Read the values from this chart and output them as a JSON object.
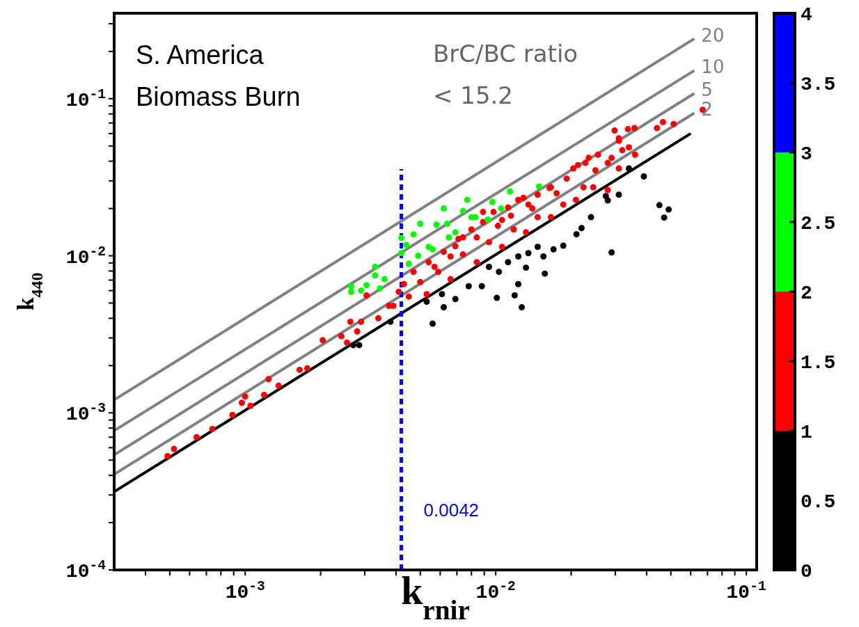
{
  "chart_data": {
    "type": "scatter",
    "xlabel": "k$_{rnir}$",
    "ylabel": "k$_{440}$",
    "log": "xy",
    "xlim": [
      0.0003,
      0.11
    ],
    "ylim": [
      0.0001,
      0.35
    ],
    "xticks": [
      {
        "value": 0.0004,
        "label": null
      },
      {
        "value": 0.0005,
        "label": null
      },
      {
        "value": 0.0006,
        "label": null
      },
      {
        "value": 0.0007,
        "label": null
      },
      {
        "value": 0.0008,
        "label": null
      },
      {
        "value": 0.0009,
        "label": null
      },
      {
        "value": 0.001,
        "label": "10$^{-3}$"
      },
      {
        "value": 0.002,
        "label": null
      },
      {
        "value": 0.003,
        "label": null
      },
      {
        "value": 0.004,
        "label": null
      },
      {
        "value": 0.005,
        "label": null
      },
      {
        "value": 0.006,
        "label": null
      },
      {
        "value": 0.007,
        "label": null
      },
      {
        "value": 0.008,
        "label": null
      },
      {
        "value": 0.009,
        "label": null
      },
      {
        "value": 0.01,
        "label": "10$^{-2}$"
      },
      {
        "value": 0.02,
        "label": null
      },
      {
        "value": 0.03,
        "label": null
      },
      {
        "value": 0.04,
        "label": null
      },
      {
        "value": 0.05,
        "label": null
      },
      {
        "value": 0.06,
        "label": null
      },
      {
        "value": 0.07,
        "label": null
      },
      {
        "value": 0.08,
        "label": null
      },
      {
        "value": 0.09,
        "label": null
      },
      {
        "value": 0.1,
        "label": "10$^{-1}$"
      }
    ],
    "yticks": [
      {
        "value": 0.0001,
        "label": "10$^{-4}$"
      },
      {
        "value": 0.0002,
        "label": null
      },
      {
        "value": 0.0003,
        "label": null
      },
      {
        "value": 0.0004,
        "label": null
      },
      {
        "value": 0.0005,
        "label": null
      },
      {
        "value": 0.0006,
        "label": null
      },
      {
        "value": 0.0007,
        "label": null
      },
      {
        "value": 0.0008,
        "label": null
      },
      {
        "value": 0.0009,
        "label": null
      },
      {
        "value": 0.001,
        "label": "10$^{-3}$"
      },
      {
        "value": 0.002,
        "label": null
      },
      {
        "value": 0.003,
        "label": null
      },
      {
        "value": 0.004,
        "label": null
      },
      {
        "value": 0.005,
        "label": null
      },
      {
        "value": 0.006,
        "label": null
      },
      {
        "value": 0.007,
        "label": null
      },
      {
        "value": 0.008,
        "label": null
      },
      {
        "value": 0.009,
        "label": null
      },
      {
        "value": 0.01,
        "label": "10$^{-2}$"
      },
      {
        "value": 0.02,
        "label": null
      },
      {
        "value": 0.03,
        "label": null
      },
      {
        "value": 0.04,
        "label": null
      },
      {
        "value": 0.05,
        "label": null
      },
      {
        "value": 0.06,
        "label": null
      },
      {
        "value": 0.07,
        "label": null
      },
      {
        "value": 0.08,
        "label": null
      },
      {
        "value": 0.09,
        "label": null
      },
      {
        "value": 0.1,
        "label": "10$^{-1}$"
      },
      {
        "value": 0.2,
        "label": null
      },
      {
        "value": 0.3,
        "label": null
      }
    ],
    "clim": [
      0,
      4
    ],
    "cticks": [
      0,
      0.5,
      1,
      1.5,
      2,
      2.5,
      3,
      3.5,
      4
    ],
    "annotations": [
      "S. America",
      "Biomass Burn",
      "BrC/BC ratio",
      "< 15.2",
      {
        "text": "0.0042",
        "x": 0.0042,
        "y": 0.00022
      }
    ],
    "series": [
      {
        "color": "#000000",
        "marker": "circle",
        "x": [
          0.0027,
          0.00285,
          0.034,
          0.039,
          0.031,
          0.028,
          0.0275,
          0.045,
          0.049,
          0.047,
          0.029,
          0.024,
          0.022,
          0.021,
          0.0186,
          0.017,
          0.0155,
          0.0147,
          0.0135,
          0.0123,
          0.0112,
          0.0132,
          0.0157,
          0.0103,
          0.0094,
          0.0088,
          0.0078,
          0.0069,
          0.0061,
          0.0053,
          0.0101,
          0.0123,
          0.0119,
          0.0127,
          0.0062,
          0.0056,
          0.0038
        ],
        "values": [
          0.0027,
          0.0027,
          0.036,
          0.032,
          0.0245,
          0.0225,
          0.024,
          0.021,
          0.0197,
          0.0175,
          0.0105,
          0.0176,
          0.015,
          0.0137,
          0.0116,
          0.011,
          0.0099,
          0.0114,
          0.0104,
          0.0099,
          0.0091,
          0.0084,
          0.0077,
          0.0079,
          0.0085,
          0.0064,
          0.0064,
          0.0053,
          0.0057,
          0.0051,
          0.0054,
          0.0066,
          0.0056,
          0.0047,
          0.0047,
          0.0037,
          0.0038
        ]
      },
      {
        "color": "#ff0000",
        "marker": "circle",
        "x": [
          0.00049,
          0.00052,
          0.00064,
          0.00074,
          0.00089,
          0.001,
          0.00097,
          0.00105,
          0.00119,
          0.00124,
          0.00136,
          0.00165,
          0.00177,
          0.00204,
          0.00242,
          0.00263,
          0.0029,
          0.00255,
          0.0028,
          0.00305,
          0.0034,
          0.00375,
          0.0298,
          0.0337,
          0.0358,
          0.044,
          0.0465,
          0.0513,
          0.067,
          0.031,
          0.034,
          0.036,
          0.032,
          0.029,
          0.028,
          0.031,
          0.0256,
          0.0235,
          0.0213,
          0.028,
          0.0192,
          0.0166,
          0.0147,
          0.0123,
          0.0112,
          0.0098,
          0.0089,
          0.008,
          0.0071,
          0.0062,
          0.0054,
          0.0047,
          0.0043,
          0.0045,
          0.0053,
          0.0066,
          0.0084,
          0.0106,
          0.0132,
          0.0166,
          0.0209,
          0.0245,
          0.0059,
          0.0074,
          0.0094,
          0.0118,
          0.0147,
          0.0186,
          0.0224,
          0.0135,
          0.0106,
          0.0084,
          0.0066,
          0.0074,
          0.0089,
          0.0129,
          0.0164,
          0.0204,
          0.0228,
          0.031,
          0.0039,
          0.0041,
          0.005,
          0.0057,
          0.0069,
          0.0102,
          0.0115,
          0.014,
          0.0175,
          0.025
        ],
        "values": [
          0.00053,
          0.00059,
          0.0007,
          0.00079,
          0.00097,
          0.00127,
          0.00116,
          0.00111,
          0.0013,
          0.00164,
          0.00149,
          0.00188,
          0.00192,
          0.0029,
          0.00308,
          0.0038,
          0.0038,
          0.0028,
          0.0033,
          0.0056,
          0.004,
          0.0048,
          0.0627,
          0.064,
          0.065,
          0.065,
          0.071,
          0.069,
          0.085,
          0.054,
          0.049,
          0.044,
          0.047,
          0.042,
          0.039,
          0.036,
          0.044,
          0.042,
          0.0378,
          0.0262,
          0.031,
          0.0273,
          0.0245,
          0.0227,
          0.0203,
          0.019,
          0.0164,
          0.0147,
          0.0128,
          0.0106,
          0.0091,
          0.0079,
          0.0066,
          0.0055,
          0.0057,
          0.0071,
          0.0091,
          0.0114,
          0.0141,
          0.0176,
          0.0227,
          0.0273,
          0.0079,
          0.0102,
          0.0122,
          0.0147,
          0.0176,
          0.0212,
          0.0273,
          0.0212,
          0.0169,
          0.0131,
          0.0099,
          0.0131,
          0.019,
          0.0234,
          0.027,
          0.036,
          0.039,
          0.056,
          0.0048,
          0.0059,
          0.0068,
          0.0085,
          0.0115,
          0.0155,
          0.018,
          0.02,
          0.025,
          0.035
        ]
      },
      {
        "color": "#00ff00",
        "marker": "circle",
        "x": [
          0.00265,
          0.00265,
          0.0029,
          0.0033,
          0.0033,
          0.0036,
          0.00305,
          0.00345,
          0.0042,
          0.0042,
          0.0047,
          0.005,
          0.0058,
          0.0062,
          0.0064,
          0.0077,
          0.0074,
          0.0097,
          0.0114,
          0.0149,
          0.0045,
          0.0049,
          0.0054,
          0.0056,
          0.0065,
          0.0069,
          0.008,
          0.0083,
          0.0093,
          0.0105,
          0.0044
        ],
        "values": [
          0.0064,
          0.0059,
          0.006,
          0.0085,
          0.0075,
          0.0071,
          0.0065,
          0.0062,
          0.013,
          0.0104,
          0.0137,
          0.016,
          0.0158,
          0.02,
          0.016,
          0.0227,
          0.0193,
          0.022,
          0.0257,
          0.0276,
          0.0089,
          0.01,
          0.0114,
          0.011,
          0.0131,
          0.0141,
          0.0176,
          0.0176,
          0.017,
          0.02,
          0.0117
        ]
      },
      {
        "type": "line",
        "name": "2",
        "color": "#808080",
        "x": [
          0.0003,
          0.062
        ],
        "values": [
          0.000406,
          0.081
        ]
      },
      {
        "type": "line",
        "name": "5",
        "color": "#808080",
        "x": [
          0.0003,
          0.062
        ],
        "values": [
          0.00054,
          0.108
        ]
      },
      {
        "type": "line",
        "name": "10",
        "color": "#808080",
        "x": [
          0.0003,
          0.062
        ],
        "values": [
          0.00077,
          0.151
        ]
      },
      {
        "type": "line",
        "name": "20",
        "color": "#808080",
        "x": [
          0.0003,
          0.062
        ],
        "values": [
          0.00121,
          0.241
        ]
      },
      {
        "type": "line",
        "color": "#000000",
        "x": [
          0.0003,
          0.06
        ],
        "values": [
          0.000315,
          0.06
        ]
      },
      {
        "type": "line",
        "color": "#0000ff",
        "line_style": "dashed",
        "x": [
          0.0042,
          0.0042
        ],
        "values": [
          0.0001,
          0.0356
        ]
      }
    ]
  }
}
